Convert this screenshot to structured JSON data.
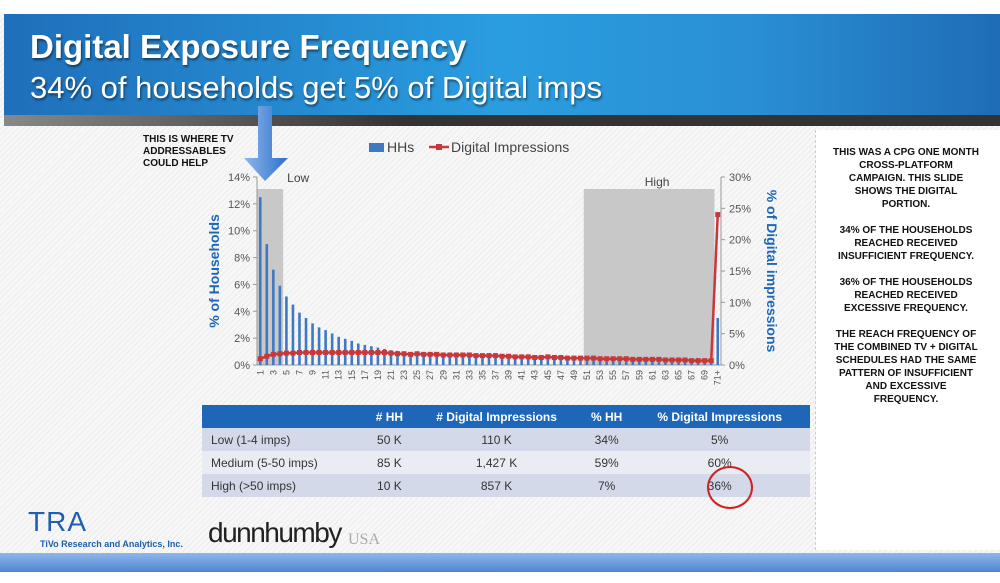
{
  "header": {
    "title": "Digital Exposure Frequency",
    "subtitle": "34% of households get 5% of Digital imps"
  },
  "annotation": "THIS IS WHERE TV ADDRESSABLES COULD HELP",
  "side_notes": [
    "THIS WAS A CPG ONE MONTH CROSS-PLATFORM CAMPAIGN. THIS SLIDE SHOWS THE DIGITAL PORTION.",
    "34% OF THE HOUSEHOLDS REACHED RECEIVED INSUFFICIENT FREQUENCY.",
    "36% OF THE HOUSEHOLDS REACHED RECEIVED EXCESSIVE FREQUENCY.",
    "THE REACH FREQUENCY OF THE COMBINED TV + DIGITAL SCHEDULES HAD THE SAME PATTERN OF INSUFFICIENT AND EXCESSIVE FREQUENCY."
  ],
  "table": {
    "headers": [
      "",
      "# HH",
      "# Digital Impressions",
      "% HH",
      "% Digital Impressions"
    ],
    "rows": [
      [
        "Low (1-4 imps)",
        "50 K",
        "110 K",
        "34%",
        "5%"
      ],
      [
        "Medium (5-50 imps)",
        "85 K",
        "1,427 K",
        "59%",
        "60%"
      ],
      [
        "High (>50 imps)",
        "10 K",
        "857 K",
        "7%",
        "36%"
      ]
    ]
  },
  "logos": {
    "tra": "TRA",
    "tra_sub": "TiVo Research and Analytics, Inc.",
    "dunnhumby": "dunnhumby",
    "usa": "USA"
  },
  "colors": {
    "hh": "#3f79c4",
    "digital": "#c8383a",
    "shade": "#c8c8c8",
    "axis_title": "#1d66b8"
  },
  "chart_data": {
    "type": "bar",
    "legend": [
      "HHs",
      "Digital Impressions"
    ],
    "legend_position": "top",
    "ylabel": "% of Households",
    "y2label": "% of Digital impressions",
    "ylim": [
      0,
      14
    ],
    "y2lim": [
      0,
      30
    ],
    "yticks": [
      "0%",
      "2%",
      "4%",
      "6%",
      "8%",
      "10%",
      "12%",
      "14%"
    ],
    "y2ticks": [
      "0%",
      "5%",
      "10%",
      "15%",
      "20%",
      "25%",
      "30%"
    ],
    "regions": [
      {
        "label": "Low",
        "from": "1",
        "to": "4"
      },
      {
        "label": "High",
        "from": "51",
        "to": "70"
      }
    ],
    "categories": [
      "1",
      "2",
      "3",
      "4",
      "5",
      "6",
      "7",
      "8",
      "9",
      "10",
      "11",
      "12",
      "13",
      "14",
      "15",
      "16",
      "17",
      "18",
      "19",
      "20",
      "21",
      "22",
      "23",
      "24",
      "25",
      "26",
      "27",
      "28",
      "29",
      "30",
      "31",
      "32",
      "33",
      "34",
      "35",
      "36",
      "37",
      "38",
      "39",
      "40",
      "41",
      "42",
      "43",
      "44",
      "45",
      "46",
      "47",
      "48",
      "49",
      "50",
      "51",
      "52",
      "53",
      "54",
      "55",
      "56",
      "57",
      "58",
      "59",
      "60",
      "61",
      "62",
      "63",
      "64",
      "65",
      "66",
      "67",
      "68",
      "69",
      "70",
      "71+"
    ],
    "series": [
      {
        "name": "HHs",
        "type": "bar",
        "axis": "left",
        "values": [
          12.5,
          9.0,
          7.1,
          5.9,
          5.1,
          4.5,
          3.9,
          3.5,
          3.1,
          2.8,
          2.6,
          2.35,
          2.1,
          1.95,
          1.8,
          1.6,
          1.5,
          1.4,
          1.3,
          1.2,
          1.1,
          1.05,
          1.0,
          0.95,
          0.9,
          0.85,
          0.8,
          0.75,
          0.72,
          0.7,
          0.67,
          0.64,
          0.62,
          0.6,
          0.58,
          0.56,
          0.54,
          0.52,
          0.5,
          0.49,
          0.48,
          0.47,
          0.46,
          0.45,
          0.44,
          0.43,
          0.42,
          0.41,
          0.4,
          0.39,
          0.38,
          0.37,
          0.36,
          0.35,
          0.35,
          0.34,
          0.34,
          0.33,
          0.33,
          0.32,
          0.32,
          0.31,
          0.31,
          0.3,
          0.3,
          0.3,
          0.29,
          0.29,
          0.28,
          0.28,
          3.5
        ]
      },
      {
        "name": "Digital Impressions",
        "type": "line",
        "axis": "right",
        "values": [
          1.0,
          1.4,
          1.7,
          1.8,
          1.9,
          1.9,
          2.0,
          2.0,
          2.0,
          2.0,
          2.0,
          2.0,
          2.0,
          2.0,
          2.0,
          2.0,
          2.0,
          2.0,
          2.0,
          2.0,
          1.9,
          1.8,
          1.8,
          1.7,
          1.8,
          1.7,
          1.7,
          1.7,
          1.6,
          1.6,
          1.6,
          1.6,
          1.6,
          1.5,
          1.5,
          1.5,
          1.5,
          1.4,
          1.4,
          1.3,
          1.3,
          1.3,
          1.2,
          1.2,
          1.3,
          1.2,
          1.2,
          1.1,
          1.1,
          1.1,
          1.1,
          1.1,
          1.0,
          1.0,
          1.0,
          1.0,
          1.0,
          0.9,
          0.9,
          0.9,
          0.9,
          0.9,
          0.8,
          0.8,
          0.8,
          0.8,
          0.7,
          0.7,
          0.7,
          0.7,
          24
        ]
      }
    ]
  }
}
